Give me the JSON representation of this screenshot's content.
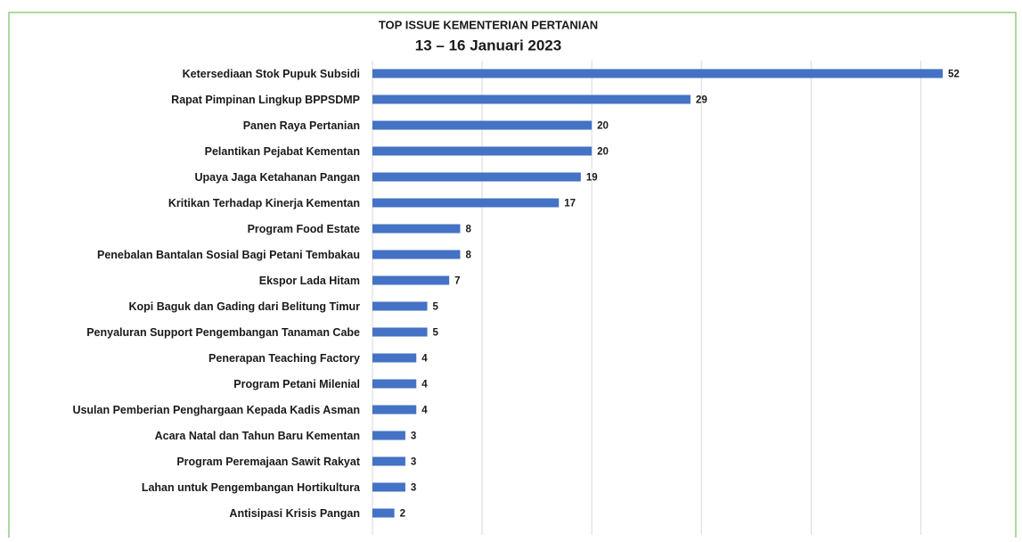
{
  "chart_data": {
    "type": "bar",
    "title": "TOP ISSUE KEMENTERIAN PERTANIAN",
    "subtitle": "13 – 16 Januari 2023",
    "categories": [
      "Ketersediaan Stok Pupuk Subsidi",
      "Rapat Pimpinan Lingkup BPPSDMP",
      "Panen Raya Pertanian",
      "Pelantikan Pejabat Kementan",
      "Upaya Jaga Ketahanan Pangan",
      "Kritikan Terhadap Kinerja Kementan",
      "Program Food Estate",
      "Penebalan Bantalan Sosial Bagi Petani Tembakau",
      "Ekspor Lada Hitam",
      "Kopi Baguk dan Gading dari Belitung Timur",
      "Penyaluran Support Pengembangan Tanaman Cabe",
      "Penerapan Teaching Factory",
      "Program Petani Milenial",
      "Usulan Pemberian Penghargaan Kepada Kadis Asman",
      "Acara Natal dan Tahun Baru Kementan",
      "Program Peremajaan Sawit Rakyat",
      "Lahan untuk Pengembangan Hortikultura",
      "Antisipasi Krisis Pangan"
    ],
    "values": [
      52,
      29,
      20,
      20,
      19,
      17,
      8,
      8,
      7,
      5,
      5,
      4,
      4,
      4,
      3,
      3,
      3,
      2
    ],
    "color": "#4472c4",
    "xlim": [
      0,
      58.5
    ],
    "xticks": [
      0,
      10,
      20,
      30,
      40,
      50
    ],
    "grid": true
  }
}
